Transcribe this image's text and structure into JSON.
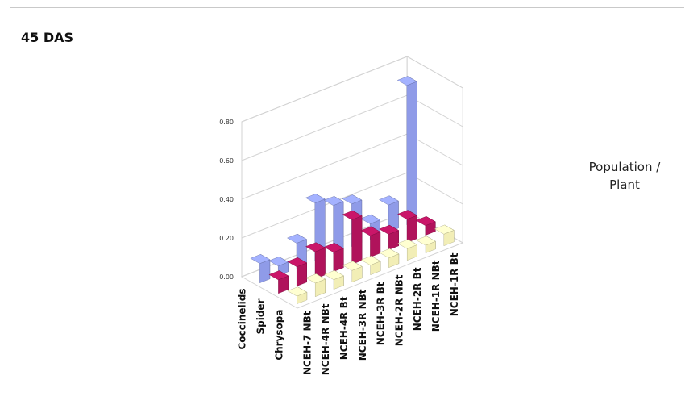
{
  "chart_data": {
    "type": "bar",
    "title": "45 DAS",
    "zlabel_lines": [
      "Population /",
      "Plant"
    ],
    "categories": [
      "NCEH-7 NBt",
      "NCEH-4R NBt",
      "NCEH-4R Bt",
      "NCEH-3R  NBt",
      "NCEH-3R Bt",
      "NCEH-2R NBt",
      "NCEH-2R Bt",
      "NCEH-1R  NBt",
      "NCEH-1R Bt"
    ],
    "series": [
      {
        "name": "Coccinelids",
        "color": "#8f9be8",
        "values": [
          0.1,
          0.05,
          0.13,
          0.3,
          0.25,
          0.22,
          0.08,
          0.14,
          0.72
        ]
      },
      {
        "name": "Spider",
        "color": "#b0135b",
        "values": [
          0.07,
          0.1,
          0.14,
          0.1,
          0.23,
          0.11,
          0.08,
          0.12,
          0.05
        ]
      },
      {
        "name": "Chrysopa",
        "color": "#f2eeb6",
        "values": [
          0.04,
          0.07,
          0.05,
          0.06,
          0.05,
          0.05,
          0.06,
          0.04,
          0.06
        ]
      }
    ],
    "zlim": [
      0,
      0.8
    ],
    "zticks": [
      "0.00",
      "0.20",
      "0.40",
      "0.60",
      "0.80"
    ],
    "grid": true,
    "projection": "3d"
  }
}
